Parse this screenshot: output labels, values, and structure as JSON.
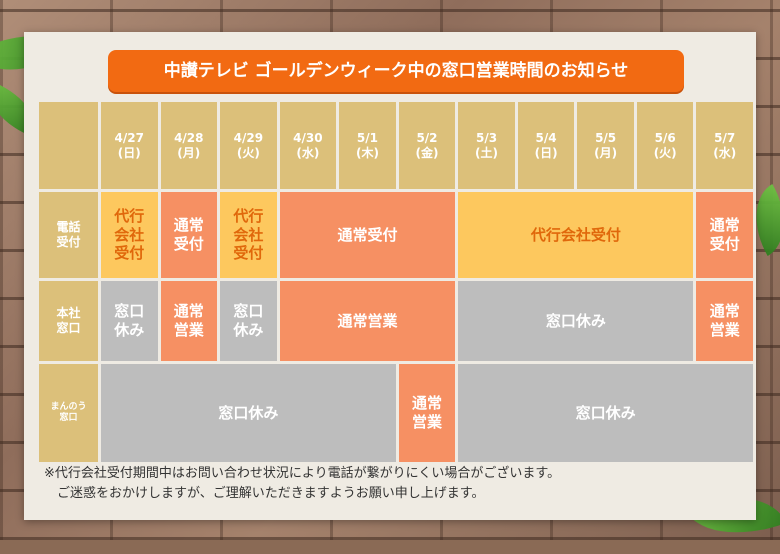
{
  "title": "中讃テレビ ゴールデンウィーク中の窓口営業時間のお知らせ",
  "columns": [
    {
      "date": "4/27",
      "day": "(日)"
    },
    {
      "date": "4/28",
      "day": "(月)"
    },
    {
      "date": "4/29",
      "day": "(火)"
    },
    {
      "date": "4/30",
      "day": "(水)"
    },
    {
      "date": "5/1",
      "day": "(木)"
    },
    {
      "date": "5/2",
      "day": "(金)"
    },
    {
      "date": "5/3",
      "day": "(土)"
    },
    {
      "date": "5/4",
      "day": "(日)"
    },
    {
      "date": "5/5",
      "day": "(月)"
    },
    {
      "date": "5/6",
      "day": "(火)"
    },
    {
      "date": "5/7",
      "day": "(水)"
    }
  ],
  "rows": {
    "phone": {
      "label": "電話\n受付",
      "cells": [
        {
          "text": "代行\n会社\n受付"
        },
        {
          "text": "通常\n受付"
        },
        {
          "text": "代行\n会社\n受付"
        },
        {
          "text": "通常受付"
        },
        {
          "text": "代行会社受付"
        },
        {
          "text": "通常\n受付"
        }
      ]
    },
    "head_office": {
      "label": "本社\n窓口",
      "cells": [
        {
          "text": "窓口\n休み"
        },
        {
          "text": "通常\n営業"
        },
        {
          "text": "窓口\n休み"
        },
        {
          "text": "通常営業"
        },
        {
          "text": "窓口休み"
        },
        {
          "text": "通常\n営業"
        }
      ]
    },
    "mannou": {
      "label": "まんのう\n窓口",
      "cells": [
        {
          "text": "窓口休み"
        },
        {
          "text": "通常\n営業"
        },
        {
          "text": "窓口休み"
        }
      ]
    }
  },
  "notes": [
    "※代行会社受付期間中はお問い合わせ状況により電話が繋がりにくい場合がございます。",
    "　ご迷惑をおかけしますが、ご理解いただきますようお願い申し上げます。"
  ],
  "colors": {
    "title_bg": "#f26a12",
    "header_bg": "#dcc07a",
    "agency_bg": "#fdc85e",
    "agency_text": "#e0680b",
    "normal_bg": "#f69063",
    "closed_bg": "#bdbdbd"
  }
}
